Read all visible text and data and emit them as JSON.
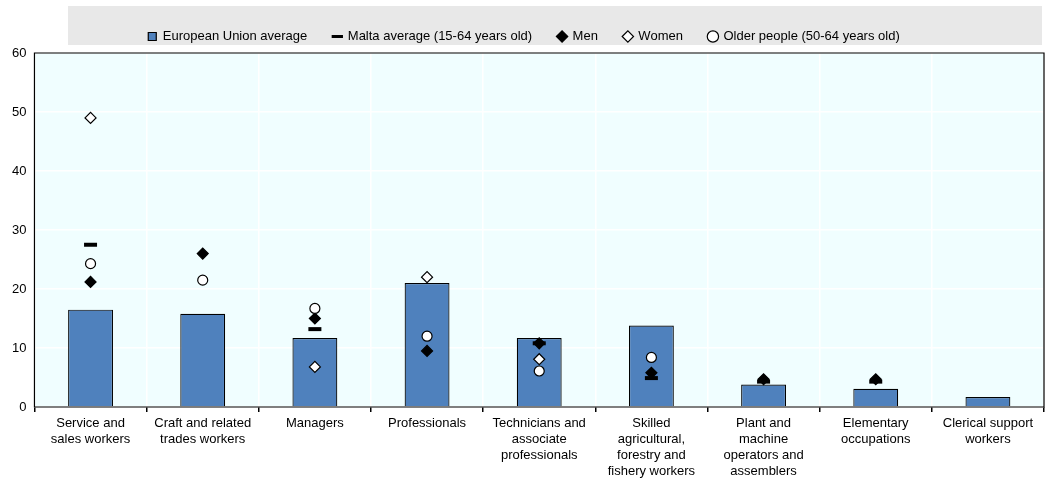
{
  "chart_data": {
    "type": "bar",
    "categories": [
      "Service and\nsales workers",
      "Craft and related\ntrades workers",
      "Managers",
      "Professionals",
      "Technicians and\nassociate\nprofessionals",
      "Skilled\nagricultural,\nforestry and\nfishery workers",
      "Plant and\nmachine\noperators and\nassemblers",
      "Elementary\noccupations",
      "Clerical support\nworkers"
    ],
    "series": [
      {
        "name": "European Union average",
        "color": "#4f81bd",
        "values": [
          16.5,
          15.8,
          11.7,
          21,
          11.7,
          13.8,
          3.8,
          3.1,
          1.7
        ]
      },
      {
        "name": "Malta average (15-64 years old)",
        "type": "scatter",
        "marker": "square",
        "color": "#000000",
        "values": [
          27.5,
          null,
          13.2,
          null,
          10.8,
          4.9,
          4.3,
          4.3,
          null
        ]
      },
      {
        "name": "Men",
        "type": "scatter",
        "marker": "diamond",
        "color": "#000000",
        "values": [
          21.2,
          26,
          15,
          9.5,
          10.8,
          5.8,
          4.7,
          4.7,
          null
        ]
      },
      {
        "name": "Women",
        "type": "scatter",
        "marker": "diamond",
        "color": "#ffffff",
        "values": [
          49,
          null,
          6.8,
          22,
          8.1,
          null,
          null,
          null,
          null
        ]
      },
      {
        "name": "Older people (50-64 years old)",
        "type": "scatter",
        "marker": "circle",
        "color": "#ffffff",
        "values": [
          24.3,
          21.5,
          16.7,
          12,
          6.1,
          8.4,
          null,
          null,
          null
        ]
      }
    ],
    "ylim": [
      0,
      60
    ],
    "yticks": [
      0,
      10,
      20,
      30,
      40,
      50,
      60
    ],
    "grid": true,
    "legend": "top"
  }
}
